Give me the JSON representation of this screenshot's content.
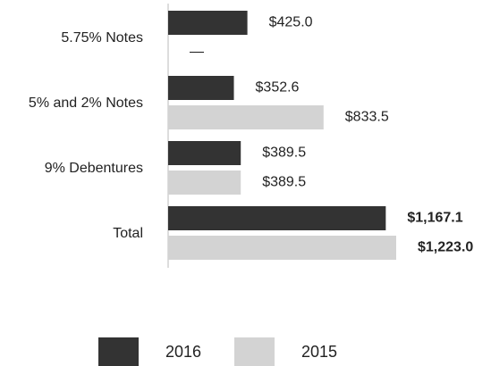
{
  "chart_data": {
    "type": "bar",
    "orientation": "horizontal",
    "categories": [
      "5.75% Notes",
      "5% and 2% Notes",
      "9% Debentures",
      "Total"
    ],
    "series": [
      {
        "name": "2016",
        "color": "#333333",
        "values": [
          425.0,
          352.6,
          389.5,
          1167.1
        ],
        "value_labels": [
          "$425.0",
          "$352.6",
          "$389.5",
          "$1,167.1"
        ]
      },
      {
        "name": "2015",
        "color": "#d3d3d3",
        "values": [
          null,
          833.5,
          389.5,
          1223.0
        ],
        "value_labels": [
          "—",
          "$833.5",
          "$389.5",
          "$1,223.0"
        ]
      }
    ],
    "legend": "bottom"
  }
}
